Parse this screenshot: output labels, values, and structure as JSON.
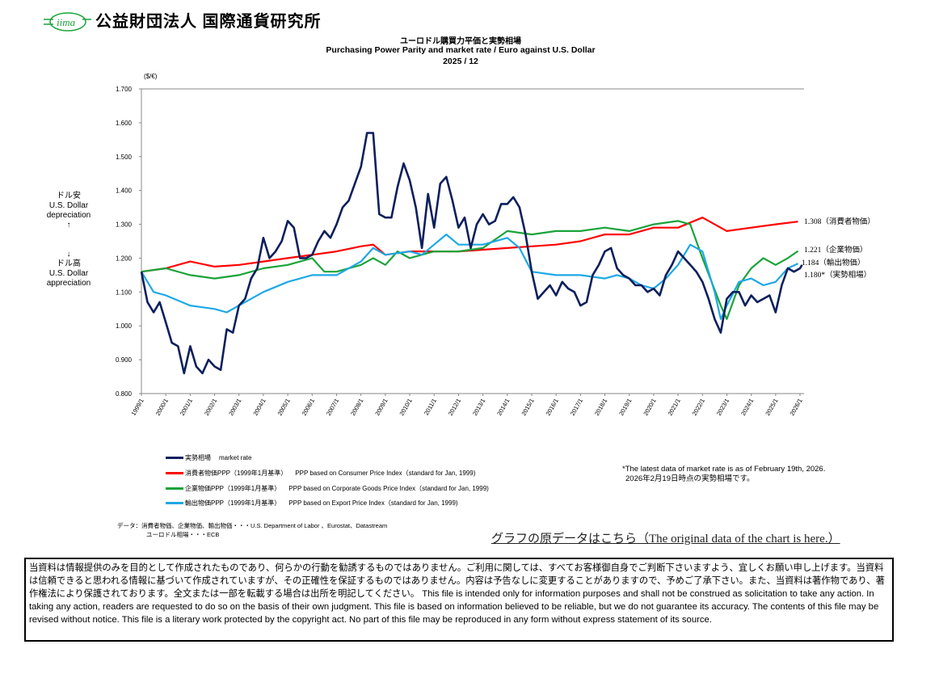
{
  "header": {
    "logo_text": "iima",
    "org_name": "公益財団法人  国際通貨研究所"
  },
  "title": {
    "ja": "ユーロドル購買力平価と実勢相場",
    "en": "Purchasing Power Parity and market rate / Euro against  U.S. Dollar",
    "date": "2025 / 12"
  },
  "side_labels": {
    "up_ja": "ドル安",
    "up_en1": "U.S. Dollar",
    "up_en2": "depreciation",
    "up_arrow": "↑",
    "down_arrow": "↓",
    "down_ja": "ドル高",
    "down_en1": "U.S. Dollar",
    "down_en2": "appreciation"
  },
  "colors": {
    "market": "#0d1f5c",
    "cpi": "#ff0000",
    "cgpi": "#1aa33a",
    "export": "#1ea8e6"
  },
  "chart_data": {
    "type": "line",
    "ylabel": "($/€)",
    "ylim": [
      0.8,
      1.7
    ],
    "yticks": [
      "0.800",
      "0.900",
      "1.000",
      "1.100",
      "1.200",
      "1.300",
      "1.400",
      "1.500",
      "1.600",
      "1.700"
    ],
    "xticks": [
      "1999/1",
      "2000/1",
      "2001/1",
      "2002/1",
      "2003/1",
      "2004/1",
      "2005/1",
      "2006/1",
      "2007/1",
      "2008/1",
      "2009/1",
      "2010/1",
      "2011/1",
      "2012/1",
      "2013/1",
      "2014/1",
      "2015/1",
      "2016/1",
      "2017/1",
      "2018/1",
      "2019/1",
      "2020/1",
      "2021/1",
      "2022/1",
      "2023/1",
      "2024/1",
      "2025/1",
      "2026/1"
    ],
    "grid": false,
    "series": [
      {
        "key": "market",
        "name": "実勢相場　market rate",
        "end_label": "1.180*（実勢相場）",
        "points": [
          [
            "1999/1",
            1.16
          ],
          [
            "1999/4",
            1.07
          ],
          [
            "1999/7",
            1.04
          ],
          [
            "1999/10",
            1.07
          ],
          [
            "2000/1",
            1.01
          ],
          [
            "2000/4",
            0.95
          ],
          [
            "2000/7",
            0.94
          ],
          [
            "2000/10",
            0.86
          ],
          [
            "2001/1",
            0.94
          ],
          [
            "2001/4",
            0.88
          ],
          [
            "2001/7",
            0.86
          ],
          [
            "2001/10",
            0.9
          ],
          [
            "2002/1",
            0.88
          ],
          [
            "2002/4",
            0.87
          ],
          [
            "2002/7",
            0.99
          ],
          [
            "2002/10",
            0.98
          ],
          [
            "2003/1",
            1.06
          ],
          [
            "2003/4",
            1.08
          ],
          [
            "2003/7",
            1.14
          ],
          [
            "2003/10",
            1.17
          ],
          [
            "2004/1",
            1.26
          ],
          [
            "2004/4",
            1.2
          ],
          [
            "2004/7",
            1.22
          ],
          [
            "2004/10",
            1.25
          ],
          [
            "2005/1",
            1.31
          ],
          [
            "2005/4",
            1.29
          ],
          [
            "2005/7",
            1.2
          ],
          [
            "2005/10",
            1.2
          ],
          [
            "2006/1",
            1.21
          ],
          [
            "2006/4",
            1.25
          ],
          [
            "2006/7",
            1.28
          ],
          [
            "2006/10",
            1.26
          ],
          [
            "2007/1",
            1.3
          ],
          [
            "2007/4",
            1.35
          ],
          [
            "2007/7",
            1.37
          ],
          [
            "2007/10",
            1.42
          ],
          [
            "2008/1",
            1.47
          ],
          [
            "2008/4",
            1.57
          ],
          [
            "2008/7",
            1.57
          ],
          [
            "2008/10",
            1.33
          ],
          [
            "2009/1",
            1.32
          ],
          [
            "2009/4",
            1.32
          ],
          [
            "2009/7",
            1.41
          ],
          [
            "2009/10",
            1.48
          ],
          [
            "2010/1",
            1.43
          ],
          [
            "2010/4",
            1.35
          ],
          [
            "2010/7",
            1.23
          ],
          [
            "2010/10",
            1.39
          ],
          [
            "2011/1",
            1.29
          ],
          [
            "2011/4",
            1.42
          ],
          [
            "2011/7",
            1.44
          ],
          [
            "2011/10",
            1.37
          ],
          [
            "2012/1",
            1.29
          ],
          [
            "2012/4",
            1.32
          ],
          [
            "2012/7",
            1.23
          ],
          [
            "2012/10",
            1.3
          ],
          [
            "2013/1",
            1.33
          ],
          [
            "2013/4",
            1.3
          ],
          [
            "2013/7",
            1.31
          ],
          [
            "2013/10",
            1.36
          ],
          [
            "2014/1",
            1.36
          ],
          [
            "2014/4",
            1.38
          ],
          [
            "2014/7",
            1.35
          ],
          [
            "2014/10",
            1.27
          ],
          [
            "2015/1",
            1.16
          ],
          [
            "2015/4",
            1.08
          ],
          [
            "2015/7",
            1.1
          ],
          [
            "2015/10",
            1.12
          ],
          [
            "2016/1",
            1.09
          ],
          [
            "2016/4",
            1.13
          ],
          [
            "2016/7",
            1.11
          ],
          [
            "2016/10",
            1.1
          ],
          [
            "2017/1",
            1.06
          ],
          [
            "2017/4",
            1.07
          ],
          [
            "2017/7",
            1.15
          ],
          [
            "2017/10",
            1.18
          ],
          [
            "2018/1",
            1.22
          ],
          [
            "2018/4",
            1.23
          ],
          [
            "2018/7",
            1.17
          ],
          [
            "2018/10",
            1.15
          ],
          [
            "2019/1",
            1.14
          ],
          [
            "2019/4",
            1.12
          ],
          [
            "2019/7",
            1.12
          ],
          [
            "2019/10",
            1.1
          ],
          [
            "2020/1",
            1.11
          ],
          [
            "2020/4",
            1.09
          ],
          [
            "2020/7",
            1.15
          ],
          [
            "2020/10",
            1.18
          ],
          [
            "2021/1",
            1.22
          ],
          [
            "2021/4",
            1.2
          ],
          [
            "2021/7",
            1.18
          ],
          [
            "2021/10",
            1.16
          ],
          [
            "2022/1",
            1.13
          ],
          [
            "2022/4",
            1.08
          ],
          [
            "2022/7",
            1.02
          ],
          [
            "2022/10",
            0.98
          ],
          [
            "2023/1",
            1.08
          ],
          [
            "2023/4",
            1.1
          ],
          [
            "2023/7",
            1.1
          ],
          [
            "2023/10",
            1.06
          ],
          [
            "2024/1",
            1.09
          ],
          [
            "2024/4",
            1.07
          ],
          [
            "2024/7",
            1.08
          ],
          [
            "2024/10",
            1.09
          ],
          [
            "2025/1",
            1.04
          ],
          [
            "2025/4",
            1.12
          ],
          [
            "2025/7",
            1.17
          ],
          [
            "2025/10",
            1.16
          ],
          [
            "2026/1",
            1.17
          ],
          [
            "2026/2",
            1.18
          ]
        ]
      },
      {
        "key": "cpi",
        "name": "消費者物価PPP（1999年1月基準）　PPP based on Consumer Price Index（standard for Jan, 1999)",
        "end_label": "1.308（消費者物価）",
        "points": [
          [
            "1999/1",
            1.16
          ],
          [
            "2000/1",
            1.17
          ],
          [
            "2001/1",
            1.19
          ],
          [
            "2002/1",
            1.175
          ],
          [
            "2003/1",
            1.18
          ],
          [
            "2004/1",
            1.19
          ],
          [
            "2005/1",
            1.2
          ],
          [
            "2006/1",
            1.21
          ],
          [
            "2007/1",
            1.22
          ],
          [
            "2008/1",
            1.235
          ],
          [
            "2008/7",
            1.24
          ],
          [
            "2009/1",
            1.21
          ],
          [
            "2010/1",
            1.22
          ],
          [
            "2011/1",
            1.22
          ],
          [
            "2012/1",
            1.22
          ],
          [
            "2013/1",
            1.225
          ],
          [
            "2014/1",
            1.23
          ],
          [
            "2015/1",
            1.235
          ],
          [
            "2016/1",
            1.24
          ],
          [
            "2017/1",
            1.25
          ],
          [
            "2018/1",
            1.27
          ],
          [
            "2019/1",
            1.27
          ],
          [
            "2020/1",
            1.29
          ],
          [
            "2021/1",
            1.29
          ],
          [
            "2022/1",
            1.32
          ],
          [
            "2022/7",
            1.3
          ],
          [
            "2023/1",
            1.28
          ],
          [
            "2024/1",
            1.29
          ],
          [
            "2025/1",
            1.3
          ],
          [
            "2025/12",
            1.308
          ]
        ]
      },
      {
        "key": "cgpi",
        "name": "企業物価PPP（1999年1月基準）　PPP based on Corporate Goods Price Index（standard for Jan, 1999)",
        "end_label": "1.221（企業物価）",
        "points": [
          [
            "1999/1",
            1.16
          ],
          [
            "2000/1",
            1.17
          ],
          [
            "2001/1",
            1.15
          ],
          [
            "2002/1",
            1.14
          ],
          [
            "2003/1",
            1.15
          ],
          [
            "2004/1",
            1.17
          ],
          [
            "2005/1",
            1.18
          ],
          [
            "2006/1",
            1.2
          ],
          [
            "2006/7",
            1.16
          ],
          [
            "2007/1",
            1.16
          ],
          [
            "2008/1",
            1.18
          ],
          [
            "2008/7",
            1.2
          ],
          [
            "2009/1",
            1.18
          ],
          [
            "2009/7",
            1.22
          ],
          [
            "2010/1",
            1.2
          ],
          [
            "2011/1",
            1.22
          ],
          [
            "2012/1",
            1.22
          ],
          [
            "2013/1",
            1.23
          ],
          [
            "2014/1",
            1.28
          ],
          [
            "2015/1",
            1.27
          ],
          [
            "2016/1",
            1.28
          ],
          [
            "2017/1",
            1.28
          ],
          [
            "2018/1",
            1.29
          ],
          [
            "2019/1",
            1.28
          ],
          [
            "2020/1",
            1.3
          ],
          [
            "2021/1",
            1.31
          ],
          [
            "2021/7",
            1.3
          ],
          [
            "2022/1",
            1.2
          ],
          [
            "2022/10",
            1.06
          ],
          [
            "2023/1",
            1.02
          ],
          [
            "2023/7",
            1.12
          ],
          [
            "2024/1",
            1.17
          ],
          [
            "2024/7",
            1.2
          ],
          [
            "2025/1",
            1.18
          ],
          [
            "2025/7",
            1.2
          ],
          [
            "2025/12",
            1.221
          ]
        ]
      },
      {
        "key": "export",
        "name": "輸出物価PPP（1999年1月基準）　PPP based on Export Price Index（standard for Jan, 1999)",
        "end_label": "1.184（輸出物価）",
        "points": [
          [
            "1999/1",
            1.16
          ],
          [
            "1999/7",
            1.1
          ],
          [
            "2000/1",
            1.09
          ],
          [
            "2001/1",
            1.06
          ],
          [
            "2002/1",
            1.05
          ],
          [
            "2002/7",
            1.04
          ],
          [
            "2003/1",
            1.06
          ],
          [
            "2004/1",
            1.1
          ],
          [
            "2005/1",
            1.13
          ],
          [
            "2006/1",
            1.15
          ],
          [
            "2007/1",
            1.15
          ],
          [
            "2008/1",
            1.19
          ],
          [
            "2008/7",
            1.23
          ],
          [
            "2009/1",
            1.21
          ],
          [
            "2010/1",
            1.22
          ],
          [
            "2010/7",
            1.21
          ],
          [
            "2011/1",
            1.24
          ],
          [
            "2011/7",
            1.27
          ],
          [
            "2012/1",
            1.24
          ],
          [
            "2013/1",
            1.24
          ],
          [
            "2014/1",
            1.26
          ],
          [
            "2014/7",
            1.23
          ],
          [
            "2015/1",
            1.16
          ],
          [
            "2016/1",
            1.15
          ],
          [
            "2017/1",
            1.15
          ],
          [
            "2018/1",
            1.14
          ],
          [
            "2018/7",
            1.15
          ],
          [
            "2019/1",
            1.14
          ],
          [
            "2019/7",
            1.12
          ],
          [
            "2020/1",
            1.11
          ],
          [
            "2020/7",
            1.14
          ],
          [
            "2021/1",
            1.18
          ],
          [
            "2021/7",
            1.24
          ],
          [
            "2022/1",
            1.22
          ],
          [
            "2022/7",
            1.1
          ],
          [
            "2022/10",
            1.02
          ],
          [
            "2023/1",
            1.06
          ],
          [
            "2023/7",
            1.13
          ],
          [
            "2024/1",
            1.14
          ],
          [
            "2024/7",
            1.12
          ],
          [
            "2025/1",
            1.13
          ],
          [
            "2025/7",
            1.17
          ],
          [
            "2025/12",
            1.184
          ]
        ]
      }
    ]
  },
  "legend": [
    {
      "ja": "実勢相場",
      "en": "market rate"
    },
    {
      "ja": "消費者物価PPP（1999年1月基準）",
      "en": "PPP based on Consumer Price Index（standard for Jan, 1999)"
    },
    {
      "ja": "企業物価PPP（1999年1月基準）",
      "en": "PPP based on Corporate Goods Price Index（standard for Jan, 1999)"
    },
    {
      "ja": "輸出物価PPP（1999年1月基準）",
      "en": "PPP based on Export Price Index（standard for Jan, 1999)"
    }
  ],
  "note": {
    "line1": "*The latest data of market rate is as of February 19th, 2026.",
    "line2": "2026年2月19日時点の実勢相場です。"
  },
  "source": {
    "line1": "データ：消費者物価、企業物価、輸出物価・・・U.S. Department of Labor 、Eurostat、Datastream",
    "line2": "ユーロドル相場・・・ECB"
  },
  "link": "グラフの原データはこちら（The original data of the chart is here.）",
  "disclaimer": "当資料は情報提供のみを目的として作成されたものであり、何らかの行動を勧誘するものではありません。ご利用に関しては、すべてお客様御自身でご判断下さいますよう、宜しくお願い申し上げます。当資料は信頼できると思われる情報に基づいて作成されていますが、その正確性を保証するものではありません。内容は予告なしに変更することがありますので、予めご了承下さい。また、当資料は著作物であり、著作権法により保護されております。全文または一部を転載する場合は出所を明記してください。 This file is intended only for information purposes and shall not be construed as solicitation to take any action. In taking any action, readers are requested to do so on the basis of their own judgment. This file is based on information believed to be reliable, but we do not guarantee its accuracy. The contents of this file may be revised without notice. This file is a literary work protected by the copyright act. No part of this file may be reproduced in any form without express statement of its source."
}
